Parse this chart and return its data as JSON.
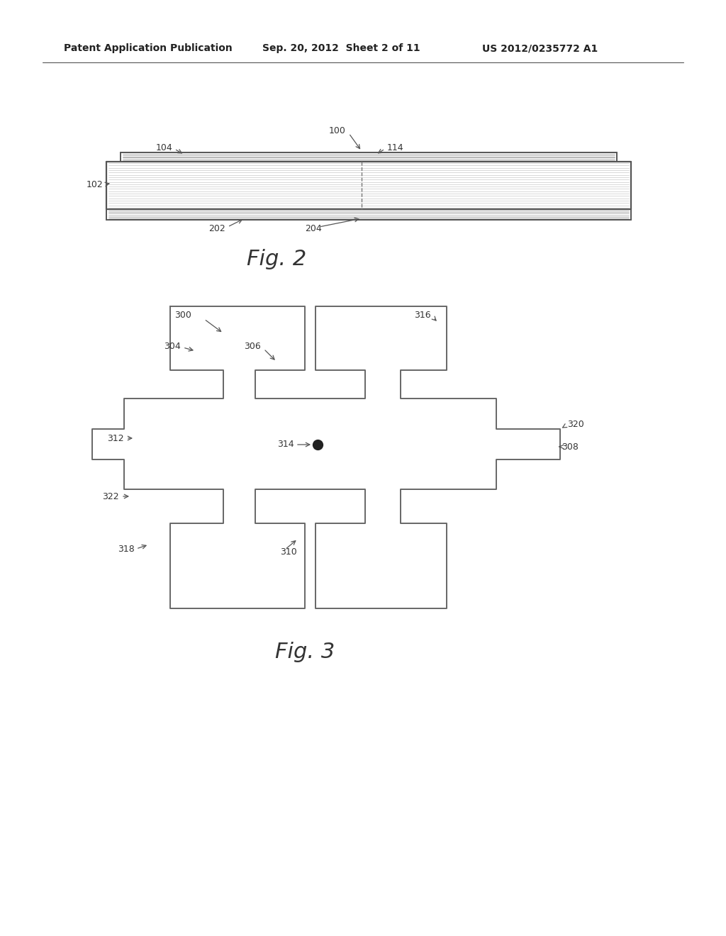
{
  "bg_color": "#ffffff",
  "line_color": "#555555",
  "text_color": "#333333",
  "header_left": "Patent Application Publication",
  "header_mid": "Sep. 20, 2012  Sheet 2 of 11",
  "header_right": "US 2012/0235772 A1",
  "fig2_label": "Fig. 2",
  "fig3_label": "Fig. 3"
}
